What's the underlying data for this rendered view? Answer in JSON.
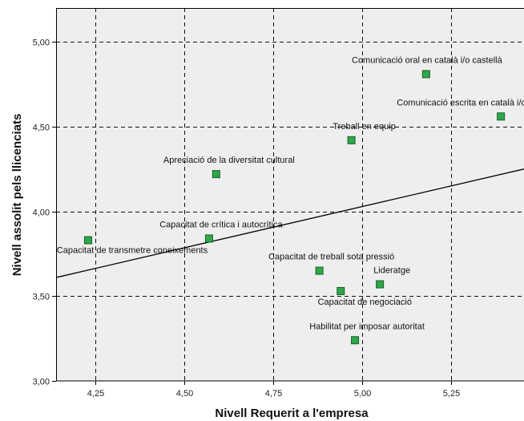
{
  "chart_data": {
    "type": "scatter",
    "title": "",
    "xlabel": "Nivell Requerit a l'empresa",
    "ylabel": "Nivell assolit pels llicenciats",
    "xlim": [
      4.14,
      5.455
    ],
    "ylim": [
      3.0,
      5.2
    ],
    "xticks": [
      "4,25",
      "4,50",
      "4,75",
      "5,00",
      "5,25"
    ],
    "xtick_values": [
      4.25,
      4.5,
      4.75,
      5.0,
      5.25
    ],
    "yticks": [
      "3,00",
      "3,50",
      "4,00",
      "4,50",
      "5,00"
    ],
    "ytick_values": [
      3.0,
      3.5,
      4.0,
      4.5,
      5.0
    ],
    "grid": true,
    "grid_style": "dashed",
    "background": "#eeeeee",
    "marker_color": "#2ea84a",
    "marker_edge_color": "#1a5e28",
    "points": [
      {
        "label": "Comunicació oral en català i/o castellà",
        "x": 5.18,
        "y": 4.81
      },
      {
        "label": "Comunicació escrita en català i/o castellà",
        "x": 5.39,
        "y": 4.56
      },
      {
        "label": "Treball en equip",
        "x": 4.97,
        "y": 4.42
      },
      {
        "label": "Apreciació de la diversitat cultural",
        "x": 4.59,
        "y": 4.22
      },
      {
        "label": "Capacitat de crítica i autocrítica",
        "x": 4.57,
        "y": 3.84
      },
      {
        "label": "Capacitat de transmetre coneixements",
        "x": 4.23,
        "y": 3.83
      },
      {
        "label": "Capacitat de treball sota pressió",
        "x": 4.88,
        "y": 3.65
      },
      {
        "label": "Lideratge",
        "x": 5.05,
        "y": 3.57
      },
      {
        "label": "Capacitat de negociació",
        "x": 4.94,
        "y": 3.53
      },
      {
        "label": "Habilitat per imposar autoritat",
        "x": 4.98,
        "y": 3.24
      }
    ],
    "fit_line": {
      "x": [
        4.14,
        5.455
      ],
      "y": [
        3.61,
        4.25
      ]
    }
  }
}
